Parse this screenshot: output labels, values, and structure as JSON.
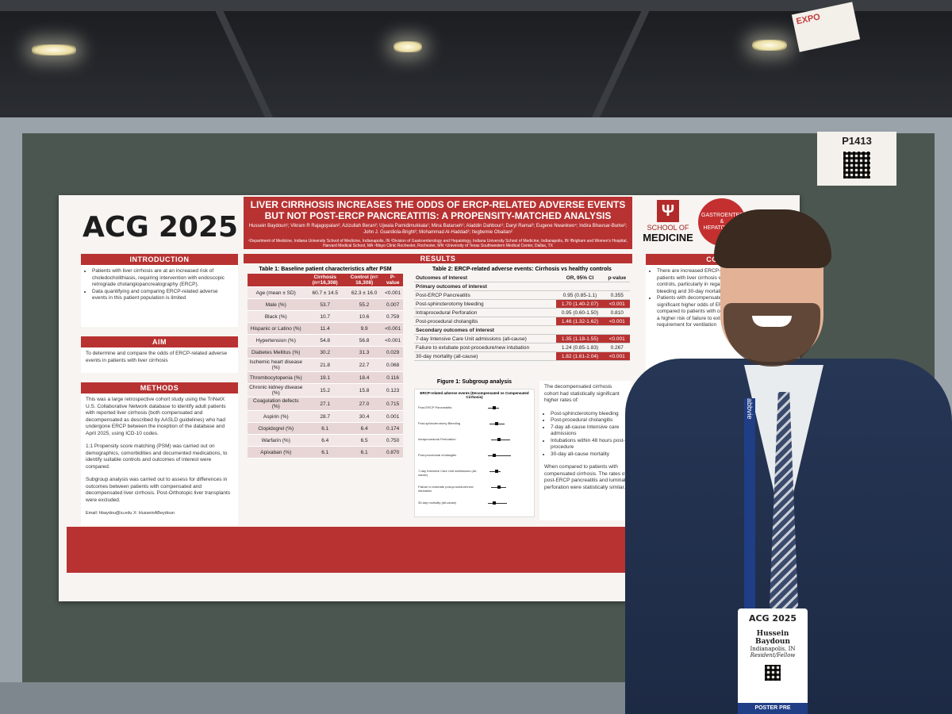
{
  "scene": {
    "board_tag": "P1413",
    "banner_text": "EXPO"
  },
  "poster": {
    "logo_left": "ACG",
    "logo_right": "2025",
    "title": "LIVER CIRRHOSIS INCREASES THE ODDS OF ERCP-RELATED ADVERSE EVENTS BUT NOT POST-ERCP PANCREATITIS: A PROPENSITY-MATCHED ANALYSIS",
    "authors": "Hussein Baydoun¹; Vikram R Rajagopalan²; Azizullah Beran²; Ujwala Pamidimukkala¹; Mina Batarseh¹; Aladdin Dahbour¹; Daryl Ramai³; Eugene Nwankwo⁴; Indira Bhavsar-Burke²; John J. Guardiola-Bright²; Mohammad Al-Haddad²; Itegbemie Obaitan²",
    "affiliations": "¹Department of Medicine, Indiana University School of Medicine, Indianapolis, IN ²Division of Gastroenterology and Hepatology, Indiana University School of Medicine, Indianapolis, IN ³Brigham and Women's Hospital, Harvard Medical School, MA ⁴Mayo Clinic Rochester, Rochester, MN ⁵University of Texas Southwestern Medical Center, Dallas, TX",
    "school_top": "SCHOOL OF",
    "school_bottom": "MEDICINE",
    "gastro_label": "GASTROENTEROLOGY & HEPATOLOGY",
    "intro_heading": "INTRODUCTION",
    "intro_b1": "Patients with liver cirrhosis are at an increased risk of choledocholithiasis, requiring intervention with endoscopic retrograde cholangiopancreatography (ERCP).",
    "intro_b2": "Data quantifying and comparing ERCP-related adverse events in this patient population is limited",
    "aim_heading": "AIM",
    "aim_text": "To determine and compare the odds of ERCP-related adverse events in patients with liver cirrhosis",
    "methods_heading": "METHODS",
    "methods_p1": "This was a large retrospective cohort study using the TriNetX U.S. Collaborative Network database to identify adult patients with reported liver cirrhosis (both compensated and decompensated as described by AASLD guidelines) who had undergone ERCP between the inception of the database and April 2025, using ICD-10 codes.",
    "methods_p2": "1:1 Propensity score matching (PSM) was carried out on demographics, comorbidities and documented medications, to identify suitable controls and outcomes of interest were compared.",
    "methods_p3": "Subgroup analysis was carried out to assess for differences in outcomes between patients with compensated and decompensated liver cirrhosis. Post-Orthotopic liver transplants were excluded.",
    "contact": "Email: hbaydou@iu.edu X: HusseinABeydoun",
    "results_heading": "RESULTS",
    "conclusion_heading": "CONCLU",
    "table1": {
      "title": "Table 1: Baseline patient characteristics after PSM",
      "headers": [
        "",
        "Cirrhosis (n=16,308)",
        "Control (n= 16,308)",
        "P-value"
      ],
      "rows": [
        [
          "Age (mean ± SD)",
          "60.7 ± 14.5",
          "62.3 ± 16.0",
          "<0.001"
        ],
        [
          "Male (%)",
          "53.7",
          "55.2",
          "0.007"
        ],
        [
          "Black (%)",
          "10.7",
          "10.6",
          "0.759"
        ],
        [
          "Hispanic or Latino (%)",
          "11.4",
          "9.9",
          "<0.001"
        ],
        [
          "Hypertension (%)",
          "54.8",
          "56.8",
          "<0.001"
        ],
        [
          "Diabetes Mellitus (%)",
          "30.2",
          "31.3",
          "0.029"
        ],
        [
          "Ischemic heart disease (%)",
          "21.8",
          "22.7",
          "0.068"
        ],
        [
          "Thrombocytopenia (%)",
          "19.1",
          "18.4",
          "0.116"
        ],
        [
          "Chronic kidney disease (%)",
          "15.2",
          "15.8",
          "0.123"
        ],
        [
          "Coagulation defects (%)",
          "27.1",
          "27.0",
          "0.715"
        ],
        [
          "Aspirin (%)",
          "28.7",
          "30.4",
          "0.001"
        ],
        [
          "Clopidogrel (%)",
          "6.1",
          "6.4",
          "0.174"
        ],
        [
          "Warfarin (%)",
          "6.4",
          "6.5",
          "0.750"
        ],
        [
          "Apixaban (%)",
          "6.1",
          "6.1",
          "0.870"
        ]
      ]
    },
    "table2": {
      "title": "Table 2: ERCP-related adverse events: Cirrhosis vs healthy controls",
      "headers": [
        "Outcomes of Interest",
        "OR, 95% CI",
        "p-value"
      ],
      "primary_label": "Primary outcomes of interest",
      "secondary_label": "Secondary outcomes of interest",
      "primary": [
        [
          "Post-ERCP Pancreatitis",
          "0.95 (0.85-1.1)",
          "0.355"
        ],
        [
          "Post-sphincterotomy bleeding",
          "1.70 (1.40-2.07)",
          "<0.001"
        ],
        [
          "Intraprocedural Perforation",
          "0.95 (0.60-1.50)",
          "0.810"
        ],
        [
          "Post-procedural cholangitis",
          "1.46 (1.32-1.62)",
          "<0.001"
        ]
      ],
      "secondary": [
        [
          "7-day Intensive Care Unit admissions (all-cause)",
          "1.35 (1.18-1.55)",
          "<0.001"
        ],
        [
          "Failure to extubate post-procedure/new intubation",
          "1.24 (0.85-1.83)",
          "0.267"
        ],
        [
          "30-day mortality (all-cause)",
          "1.82 (1.61-2.04)",
          "<0.001"
        ]
      ]
    },
    "figure1": {
      "title": "Figure 1: Subgroup analysis",
      "plot_title": "ERCP-related adverse events (Decompensated vs Compensated Cirrhosis)",
      "rows": [
        "Post-ERCP Pancreatitis",
        "Post-sphincterotomy Bleeding",
        "Intraprocedural Perforation",
        "Post-procedural cholangitis",
        "7-day Intensive Care Unit admissions (all-cause)",
        "Failure to extubate post-procedure/new intubation",
        "30-day mortality (all-cause)"
      ]
    },
    "subgroup_text_1": "The decompensated cirrhosis cohort had statistically significant higher rates of:",
    "subgroup_bullets": [
      "Post-sphincterotomy bleeding",
      "Post-procedural cholangitis",
      "7-day all-cause Intensive care admissions",
      "Intubations within 48 hours post-procedure",
      "30-day all-cause mortality"
    ],
    "subgroup_text_2": "When compared to patients with compensated cirrhosis. The rates of post-ERCP pancreatitis and luminal perforation were statistically similar.",
    "conclusion_b1": "There are increased ERCP-related adverse events in patients with liver cirrhosis when compared to healthy controls, particularly in regards to post-sphincterotomy bleeding and 30-day mortality.",
    "conclusion_b2": "Patients with decompensated liver cirrhosis have statistically significant higher odds of ERCP-related adverse events compared to patients with compensated cirrhosis, including a higher risk of failure to extubate post-procedure, requirement for ventilation"
  },
  "badge": {
    "event": "ACG 2025",
    "name": "Hussein Baydoun",
    "city": "Indianapolis, IN",
    "role": "Resident/Fellow",
    "footer": "POSTER PRE",
    "lanyard": "abbvie"
  }
}
